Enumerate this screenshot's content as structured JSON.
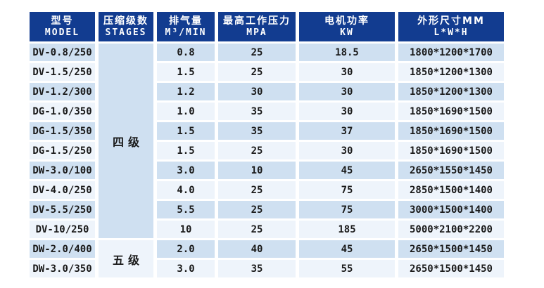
{
  "colors": {
    "header_bg": "#123c90",
    "header_text": "#ffffff",
    "row_odd_bg": "#cfe0f1",
    "row_even_bg": "#eef4fb",
    "body_text": "#1a1a1a",
    "page_bg": "#ffffff"
  },
  "table": {
    "columns": [
      {
        "zh": "型号",
        "en": "MODEL"
      },
      {
        "zh": "压缩级数",
        "en": "STAGES"
      },
      {
        "zh": "排气量",
        "en": "M³/MIN"
      },
      {
        "zh": "最高工作压力",
        "en": "MPA"
      },
      {
        "zh": "电机功率",
        "en": "KW"
      },
      {
        "zh": "外形尺寸MM",
        "en": "L*W*H"
      }
    ],
    "stage_groups": [
      {
        "label": "四级",
        "rowspan": 10
      },
      {
        "label": "五级",
        "rowspan": 2
      }
    ],
    "rows": [
      {
        "model": "DV-0.8/250",
        "displacement": "0.8",
        "pressure": "25",
        "power": "18.5",
        "dimensions": "1800*1200*1700"
      },
      {
        "model": "DV-1.5/250",
        "displacement": "1.5",
        "pressure": "25",
        "power": "30",
        "dimensions": "1850*1200*1300"
      },
      {
        "model": "DV-1.2/300",
        "displacement": "1.2",
        "pressure": "30",
        "power": "30",
        "dimensions": "1850*1200*1300"
      },
      {
        "model": "DG-1.0/350",
        "displacement": "1.0",
        "pressure": "35",
        "power": "30",
        "dimensions": "1850*1690*1500"
      },
      {
        "model": "DG-1.5/350",
        "displacement": "1.5",
        "pressure": "35",
        "power": "37",
        "dimensions": "1850*1690*1500"
      },
      {
        "model": "DG-1.5/250",
        "displacement": "1.5",
        "pressure": "25",
        "power": "30",
        "dimensions": "1850*1690*1500"
      },
      {
        "model": "DW-3.0/100",
        "displacement": "3.0",
        "pressure": "10",
        "power": "45",
        "dimensions": "2650*1550*1450"
      },
      {
        "model": "DV-4.0/250",
        "displacement": "4.0",
        "pressure": "25",
        "power": "75",
        "dimensions": "2850*1500*1400"
      },
      {
        "model": "DV-5.5/250",
        "displacement": "5.5",
        "pressure": "25",
        "power": "75",
        "dimensions": "3000*1500*1400"
      },
      {
        "model": "DV-10/250",
        "displacement": "10",
        "pressure": "25",
        "power": "185",
        "dimensions": "5000*2100*2200"
      },
      {
        "model": "DW-2.0/400",
        "displacement": "2.0",
        "pressure": "40",
        "power": "45",
        "dimensions": "2650*1500*1450"
      },
      {
        "model": "DW-3.0/350",
        "displacement": "3.0",
        "pressure": "35",
        "power": "55",
        "dimensions": "2650*1500*1450"
      }
    ]
  }
}
